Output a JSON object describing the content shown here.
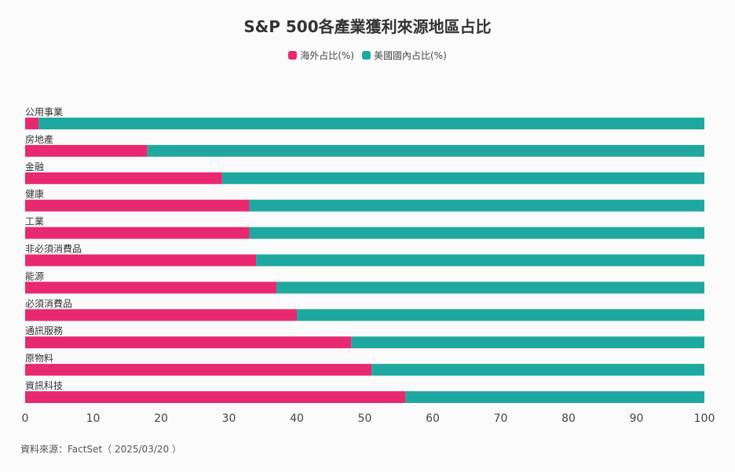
{
  "chart_data": {
    "type": "bar",
    "orientation": "horizontal",
    "stacked": true,
    "title": "S&P 500各產業獲利來源地區占比",
    "categories": [
      "公用事業",
      "房地產",
      "金融",
      "健康",
      "工業",
      "非必須消費品",
      "能源",
      "必須消費品",
      "通訊服務",
      "原物料",
      "資訊科技"
    ],
    "series": [
      {
        "name": "海外占比(%)",
        "color": "#e8296f",
        "values": [
          2,
          18,
          29,
          33,
          33,
          34,
          37,
          40,
          48,
          51,
          56
        ]
      },
      {
        "name": "美國國內占比(%)",
        "color": "#1fa89f",
        "values": [
          98,
          82,
          71,
          67,
          67,
          66,
          63,
          60,
          52,
          49,
          44
        ]
      }
    ],
    "xlim": [
      0,
      100
    ],
    "xticks": [
      0,
      10,
      20,
      30,
      40,
      50,
      60,
      70,
      80,
      90,
      100
    ],
    "xlabel": "",
    "ylabel": "",
    "legend_position": "top-center",
    "grid": false
  },
  "source_text": "資料來源：FactSet（ 2025/03/20 ）"
}
